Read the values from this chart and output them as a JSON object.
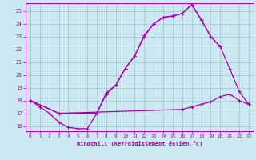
{
  "xlabel": "Windchill (Refroidissement éolien,°C)",
  "bg_color": "#cce8f0",
  "line_color": "#aa00aa",
  "grid_color": "#99bbcc",
  "xlim": [
    -0.5,
    23.5
  ],
  "ylim": [
    15.6,
    25.6
  ],
  "xticks": [
    0,
    1,
    2,
    3,
    4,
    5,
    6,
    7,
    8,
    9,
    10,
    11,
    12,
    13,
    14,
    15,
    16,
    17,
    18,
    19,
    20,
    21,
    22,
    23
  ],
  "yticks": [
    16,
    17,
    18,
    19,
    20,
    21,
    22,
    23,
    24,
    25
  ],
  "line1_x": [
    0,
    1,
    2,
    3,
    4,
    5,
    6,
    7,
    8,
    9,
    10,
    11,
    12,
    13,
    14,
    15,
    16,
    17,
    18,
    19,
    20
  ],
  "line1_y": [
    18.0,
    17.5,
    17.0,
    16.3,
    15.9,
    15.8,
    15.8,
    17.0,
    18.6,
    19.2,
    20.5,
    21.5,
    23.1,
    24.0,
    24.5,
    24.6,
    24.8,
    25.5,
    24.3,
    23.0,
    22.2
  ],
  "line2_x": [
    0,
    3,
    7,
    8,
    9,
    10,
    11,
    12,
    13,
    14,
    15,
    16,
    17,
    18,
    19,
    20,
    21,
    22,
    23
  ],
  "line2_y": [
    18.0,
    17.0,
    17.0,
    18.5,
    19.2,
    20.5,
    21.5,
    23.0,
    24.0,
    24.5,
    24.6,
    24.8,
    25.5,
    24.3,
    23.0,
    22.2,
    20.5,
    18.7,
    17.7
  ],
  "line3_x": [
    0,
    3,
    16,
    17,
    18,
    19,
    20,
    21,
    22,
    23
  ],
  "line3_y": [
    18.0,
    17.0,
    17.3,
    17.5,
    17.7,
    17.9,
    18.3,
    18.5,
    18.0,
    17.7
  ]
}
